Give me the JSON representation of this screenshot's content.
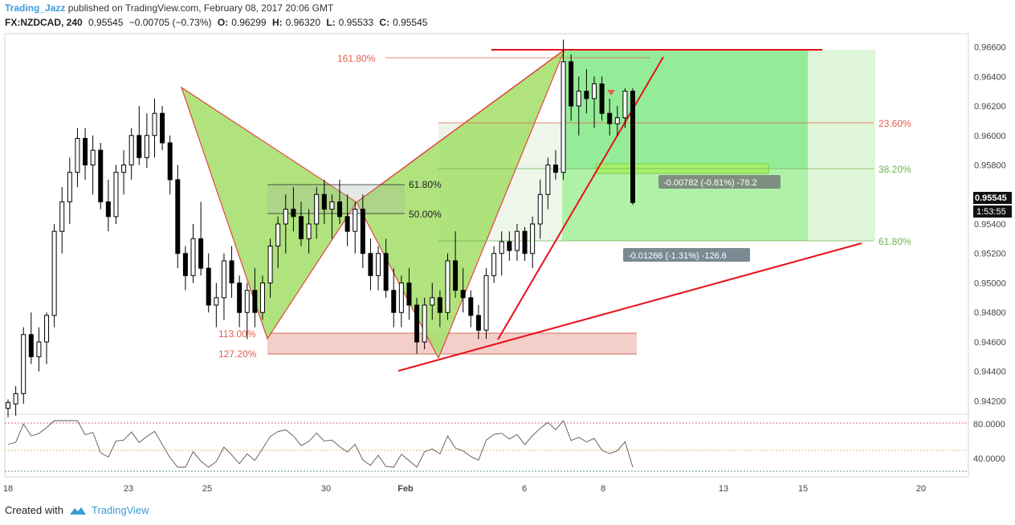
{
  "header": {
    "author": "Trading_Jazz",
    "published": "published on TradingView.com, February 08, 2017 20:06 GMT",
    "symbol": "FX:NZDCAD, 240",
    "last": "0.95545",
    "change": "−0.00705 (−0.73%)",
    "o_label": "O:",
    "o_val": "0.96299",
    "h_label": "H:",
    "h_val": "0.96320",
    "l_label": "L:",
    "l_val": "0.95533",
    "c_label": "C:",
    "c_val": "0.95545"
  },
  "footer": {
    "created_with": "Created with",
    "brand": "TradingView"
  },
  "colors": {
    "up": "#ffffff",
    "down": "#000000",
    "pattern_fill": "#a8e070",
    "pattern_line": "#e0342c",
    "trend_line": "#e8101a",
    "target_green": "#6fe36f",
    "zone_pink": "#f2c6c0",
    "fib_red": "#e06050",
    "fib_green": "#70b050"
  },
  "chart_data": {
    "type": "candlestick",
    "price_axis": {
      "ticks": [
        "0.96600",
        "0.96400",
        "0.96200",
        "0.96000",
        "0.95800",
        "0.95600",
        "0.95400",
        "0.95200",
        "0.95000",
        "0.94800",
        "0.94600",
        "0.94400",
        "0.94200"
      ],
      "ylim": [
        0.9411,
        0.9669
      ],
      "last_price_label": "0.95545",
      "countdown_label": "1:53:55"
    },
    "time_axis": {
      "ticks": [
        "18",
        "23",
        "25",
        "30",
        "Feb",
        "6",
        "8",
        "13",
        "15",
        "20"
      ]
    },
    "fib_labels": [
      "161.80%",
      "113.00%",
      "127.20%",
      "61.80%",
      "50.00%",
      "23.60%",
      "38.20%",
      "61.80%"
    ],
    "fib_levels": [
      {
        "label_index": 0,
        "value": 0.9648
      },
      {
        "label_index": 1,
        "value": 0.94621
      },
      {
        "label_index": 2,
        "value": 0.94518
      },
      {
        "label_index": 3,
        "value": 0.9564
      },
      {
        "label_index": 4,
        "value": 0.9547
      },
      {
        "label_index": 5,
        "value": 0.96051
      },
      {
        "label_index": 6,
        "value": 0.9575
      },
      {
        "label_index": 7,
        "value": 0.9526
      }
    ],
    "measure_labels": [
      "-0.00782 (-0.81%) -78.2",
      "-0.01266 (-1.31%) -126.6"
    ],
    "candles": [
      [
        0.9415,
        0.9421,
        0.9409,
        0.9419
      ],
      [
        0.9418,
        0.943,
        0.941,
        0.9425
      ],
      [
        0.9425,
        0.947,
        0.9418,
        0.9465
      ],
      [
        0.9465,
        0.948,
        0.9445,
        0.945
      ],
      [
        0.945,
        0.947,
        0.944,
        0.946
      ],
      [
        0.946,
        0.948,
        0.9445,
        0.9478
      ],
      [
        0.9478,
        0.954,
        0.947,
        0.9535
      ],
      [
        0.9535,
        0.9565,
        0.952,
        0.9555
      ],
      [
        0.9555,
        0.9585,
        0.954,
        0.9575
      ],
      [
        0.9575,
        0.9605,
        0.9565,
        0.9598
      ],
      [
        0.9598,
        0.9605,
        0.957,
        0.958
      ],
      [
        0.958,
        0.96,
        0.956,
        0.959
      ],
      [
        0.959,
        0.9595,
        0.955,
        0.9555
      ],
      [
        0.9555,
        0.957,
        0.9535,
        0.9545
      ],
      [
        0.9545,
        0.958,
        0.954,
        0.9575
      ],
      [
        0.9575,
        0.959,
        0.956,
        0.958
      ],
      [
        0.958,
        0.9605,
        0.957,
        0.96
      ],
      [
        0.96,
        0.962,
        0.958,
        0.9585
      ],
      [
        0.9585,
        0.9615,
        0.9578,
        0.96
      ],
      [
        0.96,
        0.9625,
        0.9585,
        0.9615
      ],
      [
        0.9615,
        0.962,
        0.959,
        0.9595
      ],
      [
        0.9595,
        0.96,
        0.956,
        0.957
      ],
      [
        0.957,
        0.958,
        0.951,
        0.952
      ],
      [
        0.952,
        0.9525,
        0.9495,
        0.9505
      ],
      [
        0.9505,
        0.954,
        0.95,
        0.953
      ],
      [
        0.953,
        0.9555,
        0.9505,
        0.951
      ],
      [
        0.951,
        0.952,
        0.948,
        0.9485
      ],
      [
        0.9485,
        0.95,
        0.947,
        0.949
      ],
      [
        0.949,
        0.952,
        0.9475,
        0.9515
      ],
      [
        0.9515,
        0.9525,
        0.949,
        0.95
      ],
      [
        0.95,
        0.9505,
        0.947,
        0.948
      ],
      [
        0.948,
        0.95,
        0.9462,
        0.9495
      ],
      [
        0.9495,
        0.951,
        0.947,
        0.948
      ],
      [
        0.948,
        0.9505,
        0.9475,
        0.95
      ],
      [
        0.95,
        0.953,
        0.949,
        0.9525
      ],
      [
        0.9525,
        0.9545,
        0.951,
        0.954
      ],
      [
        0.954,
        0.956,
        0.952,
        0.955
      ],
      [
        0.955,
        0.9565,
        0.9535,
        0.9545
      ],
      [
        0.9545,
        0.9555,
        0.9525,
        0.953
      ],
      [
        0.953,
        0.955,
        0.952,
        0.954
      ],
      [
        0.954,
        0.9565,
        0.953,
        0.956
      ],
      [
        0.956,
        0.957,
        0.954,
        0.955
      ],
      [
        0.955,
        0.956,
        0.953,
        0.9555
      ],
      [
        0.9555,
        0.957,
        0.954,
        0.9545
      ],
      [
        0.9545,
        0.956,
        0.9525,
        0.9535
      ],
      [
        0.9535,
        0.9555,
        0.952,
        0.955
      ],
      [
        0.955,
        0.956,
        0.951,
        0.952
      ],
      [
        0.952,
        0.953,
        0.9495,
        0.9505
      ],
      [
        0.9505,
        0.9525,
        0.9495,
        0.952
      ],
      [
        0.952,
        0.953,
        0.949,
        0.9495
      ],
      [
        0.9495,
        0.951,
        0.947,
        0.948
      ],
      [
        0.948,
        0.9505,
        0.947,
        0.95
      ],
      [
        0.95,
        0.951,
        0.9475,
        0.9485
      ],
      [
        0.9485,
        0.949,
        0.9452,
        0.946
      ],
      [
        0.946,
        0.949,
        0.9455,
        0.9485
      ],
      [
        0.9485,
        0.95,
        0.9475,
        0.949
      ],
      [
        0.949,
        0.9495,
        0.947,
        0.948
      ],
      [
        0.948,
        0.952,
        0.9475,
        0.9515
      ],
      [
        0.9515,
        0.9535,
        0.949,
        0.9495
      ],
      [
        0.9495,
        0.951,
        0.948,
        0.949
      ],
      [
        0.949,
        0.9495,
        0.947,
        0.9478
      ],
      [
        0.9478,
        0.9485,
        0.9462,
        0.9468
      ],
      [
        0.9468,
        0.951,
        0.9462,
        0.9505
      ],
      [
        0.9505,
        0.9525,
        0.95,
        0.952
      ],
      [
        0.952,
        0.9535,
        0.9505,
        0.9528
      ],
      [
        0.9528,
        0.9535,
        0.9515,
        0.9522
      ],
      [
        0.9522,
        0.954,
        0.9515,
        0.9535
      ],
      [
        0.9535,
        0.9538,
        0.9515,
        0.952
      ],
      [
        0.952,
        0.9545,
        0.951,
        0.954
      ],
      [
        0.954,
        0.957,
        0.953,
        0.956
      ],
      [
        0.956,
        0.9585,
        0.955,
        0.958
      ],
      [
        0.958,
        0.959,
        0.957,
        0.9575
      ],
      [
        0.9575,
        0.9665,
        0.957,
        0.965
      ],
      [
        0.965,
        0.9655,
        0.961,
        0.962
      ],
      [
        0.962,
        0.964,
        0.96,
        0.963
      ],
      [
        0.963,
        0.9645,
        0.9615,
        0.9625
      ],
      [
        0.9625,
        0.964,
        0.9605,
        0.9635
      ],
      [
        0.9635,
        0.964,
        0.961,
        0.9615
      ],
      [
        0.9615,
        0.9625,
        0.96,
        0.9608
      ],
      [
        0.9608,
        0.962,
        0.96,
        0.9612
      ],
      [
        0.9612,
        0.9632,
        0.9605,
        0.963
      ],
      [
        0.963,
        0.9632,
        0.9553,
        0.95545
      ]
    ]
  }
}
